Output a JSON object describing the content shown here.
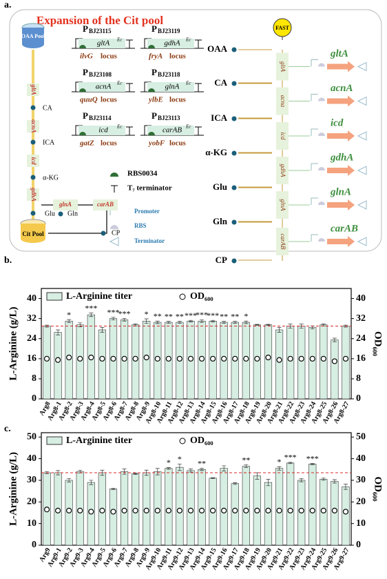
{
  "panel_a": {
    "label": "a.",
    "title": "Expansion of the Cit pool",
    "left_pathway": {
      "pools": [
        "OAA Pool",
        "Cit Pool"
      ],
      "metabolites": [
        "CA",
        "ICA",
        "α-KG",
        "Glu",
        "Gln",
        "CP"
      ],
      "enzymes": [
        "gltA",
        "acnA",
        "icd",
        "gdhA",
        "glnA",
        "carAB"
      ]
    },
    "promoter_letter": "P",
    "gene_sup": "Ec",
    "locus_word": "locus",
    "cassettes": [
      {
        "promoter": "BJ23115",
        "gene": "gltA",
        "locus": "ilvG"
      },
      {
        "promoter": "BJ23119",
        "gene": "gdhA",
        "locus": "fryA"
      },
      {
        "promoter": "BJ23108",
        "gene": "acnA",
        "locus": "quuQ"
      },
      {
        "promoter": "BJ23118",
        "gene": "glnA",
        "locus": "ylbE"
      },
      {
        "promoter": "BJ23114",
        "gene": "icd",
        "locus": "gatZ"
      },
      {
        "promoter": "BJ23113",
        "gene": "carAB",
        "locus": "yobF"
      }
    ],
    "legend": [
      "RBS0034",
      "T₇ terminator",
      "Promoter",
      "RBS",
      "Terminator"
    ],
    "right_pathway": {
      "metabolites": [
        "OAA",
        "CA",
        "ICA",
        "α-KG",
        "Glu",
        "Gln",
        "CP"
      ],
      "sensor": "FAST",
      "enzymes": [
        "gltA",
        "acna",
        "icd",
        "gdhA",
        "glnA",
        "carAB"
      ],
      "genes": [
        "gltA",
        "acnA",
        "icd",
        "gdhA",
        "glnA",
        "carAB"
      ]
    }
  },
  "chart_data": [
    {
      "type": "bar",
      "panel_label": "b.",
      "y_label": "L-Arginine (g/L)",
      "y2_label": "OD₆₀₀",
      "categories": [
        "Arg8",
        "Arg8-1",
        "Arg8-2",
        "Arg8-3",
        "Arg8-4",
        "Arg8-5",
        "Arg8-6",
        "Arg8-7",
        "Arg8-8",
        "Arg8-9",
        "Arg8-10",
        "Arg8-11",
        "Arg8-12",
        "Arg8-13",
        "Arg8-14",
        "Arg8-15",
        "Arg8-16",
        "Arg8-17",
        "Arg8-18",
        "Arg8-19",
        "Arg8-20",
        "Arg8-21",
        "Arg8-22",
        "Arg8-23",
        "Arg8-24",
        "Arg8-25",
        "Arg8-26",
        "Arg8-27"
      ],
      "series": [
        {
          "name": "L-Arginine titer",
          "color": "#d7eee2",
          "values": [
            29,
            26.5,
            31,
            29.5,
            33.5,
            27.5,
            32,
            31.5,
            29.5,
            31,
            30.5,
            30.5,
            30.5,
            31,
            31,
            31,
            30.5,
            30.5,
            30.5,
            29.5,
            29.5,
            27.5,
            29,
            29,
            28.5,
            29.5,
            23.5,
            29
          ],
          "errors": [
            0.4,
            1,
            0.6,
            0.8,
            0.7,
            1,
            0.5,
            0.5,
            0.4,
            0.9,
            0.5,
            0.4,
            0.4,
            0.3,
            0.5,
            0.3,
            0.4,
            0.4,
            0.5,
            0.2,
            0.2,
            1,
            0.8,
            0.8,
            0.6,
            0.4,
            0.7,
            0.4
          ]
        },
        {
          "name": "OD₆₀₀",
          "color": "#000000",
          "axis": "y2",
          "values": [
            16,
            15.5,
            16.5,
            16,
            16.5,
            16,
            16,
            16,
            16,
            16.5,
            16,
            16,
            16,
            16,
            16,
            16,
            16,
            16,
            16,
            16,
            16.5,
            15.5,
            16,
            16,
            16,
            16,
            15,
            16
          ]
        }
      ],
      "significance": [
        null,
        null,
        "*",
        null,
        "***",
        null,
        "***",
        "***",
        null,
        "*",
        "**",
        "**",
        "**",
        "***",
        "***",
        "***",
        "**",
        "**",
        "*",
        null,
        null,
        null,
        null,
        null,
        null,
        null,
        null,
        null
      ],
      "reference_line": 29,
      "ylim": [
        0,
        44
      ],
      "yticks": [
        0,
        8,
        16,
        24,
        32,
        40
      ],
      "y2lim": [
        0,
        44
      ],
      "y2ticks": [
        0,
        8,
        16,
        24,
        32,
        40
      ]
    },
    {
      "type": "bar",
      "panel_label": "c.",
      "y_label": "L-Arginine (g/L)",
      "y2_label": "OD₆₀₀",
      "categories": [
        "Arg9",
        "Arg9-1",
        "Arg9-2",
        "Arg9-3",
        "Arg9-4",
        "Arg9-5",
        "Arg9-6",
        "Arg9-7",
        "Arg9-8",
        "Arg9-9",
        "Arg9-10",
        "Arg9-11",
        "Arg9-12",
        "Arg9-13",
        "Arg9-14",
        "Arg9-15",
        "Arg9-16",
        "Arg9-17",
        "Arg9-18",
        "Arg9-19",
        "Arg9-20",
        "Arg9-21",
        "Arg9-22",
        "Arg9-23",
        "Arg9-24",
        "Arg9-25",
        "Arg9-26",
        "Arg9-27"
      ],
      "series": [
        {
          "name": "L-Arginine titer",
          "color": "#d7eee2",
          "values": [
            33.5,
            33.5,
            30,
            34,
            29,
            33.5,
            26,
            34,
            33,
            33.5,
            34,
            35.5,
            36,
            34.5,
            35,
            31,
            35.5,
            28.5,
            36.5,
            32,
            29,
            35.5,
            38,
            30,
            37.5,
            30.5,
            29.5,
            27
          ],
          "errors": [
            0.5,
            1,
            0.8,
            0.6,
            1,
            1.2,
            0.3,
            1.2,
            0.3,
            1.2,
            1.5,
            0.4,
            1.5,
            0.7,
            0.5,
            0.2,
            1.2,
            0.4,
            0.6,
            1.5,
            1.5,
            0.8,
            0.3,
            0.7,
            0.3,
            0.5,
            0.8,
            1.2
          ]
        },
        {
          "name": "OD₆₀₀",
          "color": "#000000",
          "axis": "y2",
          "values": [
            16.5,
            16,
            16,
            16,
            15.5,
            16,
            15.5,
            16,
            16,
            16,
            16,
            16,
            16,
            16,
            16,
            16,
            16,
            16,
            16,
            16,
            16,
            16,
            16,
            16,
            16,
            16,
            16,
            15.5
          ]
        }
      ],
      "significance": [
        null,
        null,
        null,
        null,
        null,
        null,
        null,
        null,
        null,
        null,
        null,
        "*",
        "*",
        null,
        "**",
        null,
        null,
        null,
        "**",
        null,
        null,
        "*",
        "***",
        null,
        "***",
        null,
        null,
        null
      ],
      "reference_line": 33.5,
      "ylim": [
        0,
        52
      ],
      "yticks": [
        0,
        10,
        20,
        30,
        40,
        50
      ],
      "y2lim": [
        0,
        52
      ],
      "y2ticks": [
        0,
        10,
        20,
        30,
        40,
        50
      ]
    }
  ]
}
